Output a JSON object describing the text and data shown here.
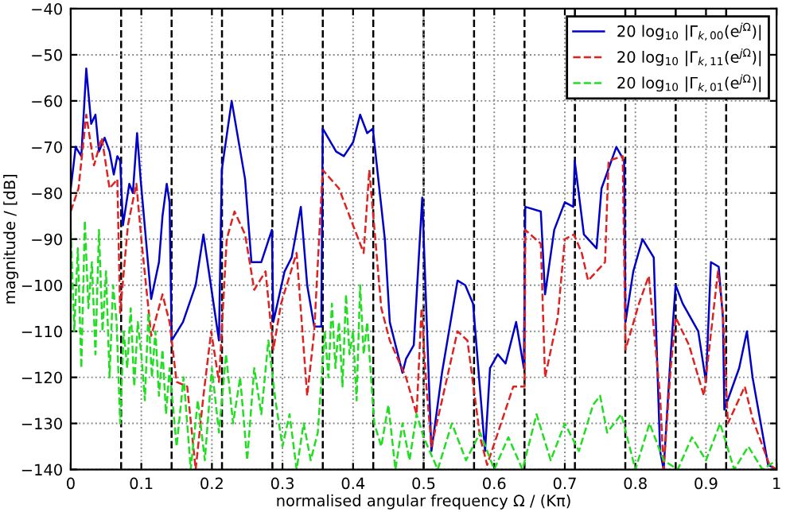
{
  "chart_data": {
    "type": "line",
    "xlabel": "normalised angular frequency Ω / (Kπ)",
    "ylabel": "magnitude / [dB]",
    "xlim": [
      0,
      1
    ],
    "ylim": [
      -140,
      -40
    ],
    "xticks": [
      0,
      0.1,
      0.2,
      0.3,
      0.4,
      0.5,
      0.6,
      0.7,
      0.8,
      0.9,
      1
    ],
    "yticks": [
      -140,
      -130,
      -120,
      -110,
      -100,
      -90,
      -80,
      -70,
      -60,
      -50,
      -40
    ],
    "grid": true,
    "legend": "top right",
    "series": [
      {
        "name": "20 log$_{10}$ |Γ$_{k,00}$(e$^{jΩ}$)|",
        "color": "#0000c8",
        "line_style": "solid",
        "x": [
          0,
          0.007,
          0.015,
          0.022,
          0.029,
          0.035,
          0.04,
          0.048,
          0.055,
          0.061,
          0.066,
          0.07,
          0.074,
          0.083,
          0.088,
          0.094,
          0.099,
          0.114,
          0.125,
          0.13,
          0.136,
          0.14,
          0.143,
          0.159,
          0.177,
          0.188,
          0.21,
          0.214,
          0.228,
          0.247,
          0.256,
          0.27,
          0.285,
          0.287,
          0.303,
          0.313,
          0.326,
          0.335,
          0.345,
          0.355,
          0.357,
          0.376,
          0.387,
          0.4,
          0.41,
          0.42,
          0.428,
          0.445,
          0.452,
          0.47,
          0.475,
          0.486,
          0.498,
          0.511,
          0.526,
          0.548,
          0.559,
          0.57,
          0.587,
          0.594,
          0.605,
          0.616,
          0.631,
          0.642,
          0.644,
          0.666,
          0.672,
          0.685,
          0.7,
          0.712,
          0.714,
          0.727,
          0.745,
          0.752,
          0.773,
          0.784,
          0.786,
          0.797,
          0.81,
          0.826,
          0.835,
          0.84,
          0.85,
          0.857,
          0.867,
          0.889,
          0.9,
          0.907,
          0.918,
          0.924,
          0.926,
          0.947,
          0.958,
          0.966,
          0.988,
          1
        ],
        "values": [
          -79,
          -70,
          -72,
          -53,
          -65,
          -63,
          -71,
          -68,
          -71,
          -76,
          -72,
          -73,
          -87,
          -78,
          -80,
          -67,
          -77,
          -103,
          -95,
          -85,
          -78,
          -82,
          -112,
          -108,
          -100,
          -89,
          -112,
          -75,
          -60,
          -77,
          -95,
          -95,
          -88,
          -108,
          -97,
          -94,
          -83,
          -100,
          -109,
          -109,
          -66,
          -71,
          -72,
          -69,
          -63,
          -67,
          -66,
          -90,
          -108,
          -119,
          -116,
          -113,
          -81,
          -136,
          -119,
          -99,
          -100,
          -104,
          -136,
          -118,
          -115,
          -117,
          -108,
          -118,
          -83,
          -84,
          -102,
          -88,
          -82,
          -83,
          -73,
          -89,
          -92,
          -79,
          -70,
          -73,
          -108,
          -97,
          -90,
          -94,
          -136,
          -140,
          -115,
          -100,
          -104,
          -110,
          -121,
          -95,
          -96,
          -107,
          -127,
          -118,
          -110,
          -120,
          -139,
          -140
        ]
      },
      {
        "name": "20 log$_{10}$ |Γ$_{k,11}$(e$^{jΩ}$)|",
        "color": "#dd2222",
        "line_style": "dashed",
        "x": [
          0,
          0.011,
          0.022,
          0.033,
          0.044,
          0.055,
          0.066,
          0.07,
          0.081,
          0.093,
          0.1,
          0.114,
          0.13,
          0.14,
          0.15,
          0.165,
          0.177,
          0.188,
          0.199,
          0.21,
          0.221,
          0.232,
          0.247,
          0.26,
          0.276,
          0.287,
          0.298,
          0.32,
          0.335,
          0.345,
          0.357,
          0.38,
          0.4,
          0.415,
          0.423,
          0.44,
          0.452,
          0.475,
          0.49,
          0.497,
          0.504,
          0.511,
          0.526,
          0.548,
          0.562,
          0.58,
          0.59,
          0.627,
          0.643,
          0.644,
          0.666,
          0.672,
          0.69,
          0.7,
          0.713,
          0.724,
          0.733,
          0.757,
          0.762,
          0.782,
          0.786,
          0.805,
          0.819,
          0.835,
          0.84,
          0.85,
          0.857,
          0.876,
          0.897,
          0.917,
          0.924,
          0.931,
          0.955,
          0.966,
          0.99,
          1
        ],
        "values": [
          -84,
          -79,
          -63,
          -74,
          -68,
          -79,
          -77,
          -106,
          -87,
          -78,
          -90,
          -111,
          -102,
          -108,
          -121,
          -122,
          -140,
          -124,
          -110,
          -121,
          -90,
          -84,
          -89,
          -101,
          -97,
          -114,
          -104,
          -93,
          -124,
          -110,
          -75,
          -79,
          -87,
          -93,
          -75,
          -105,
          -112,
          -120,
          -128,
          -105,
          -122,
          -135,
          -125,
          -110,
          -112,
          -133,
          -139,
          -122,
          -122,
          -88,
          -91,
          -120,
          -107,
          -90,
          -89,
          -93,
          -99,
          -95,
          -73,
          -72,
          -114,
          -104,
          -98,
          -124,
          -140,
          -118,
          -107,
          -113,
          -124,
          -97,
          -106,
          -130,
          -122,
          -129,
          -139,
          -140
        ]
      },
      {
        "name": "20 log$_{10}$ |Γ$_{k,01}$(e$^{jΩ}$)|",
        "color": "#22dd22",
        "line_style": "dashed",
        "x": [
          0,
          0.005,
          0.01,
          0.015,
          0.02,
          0.025,
          0.03,
          0.035,
          0.04,
          0.045,
          0.05,
          0.055,
          0.06,
          0.065,
          0.07,
          0.075,
          0.08,
          0.085,
          0.09,
          0.095,
          0.1,
          0.105,
          0.11,
          0.115,
          0.12,
          0.125,
          0.13,
          0.135,
          0.14,
          0.15,
          0.16,
          0.17,
          0.18,
          0.19,
          0.2,
          0.21,
          0.22,
          0.23,
          0.24,
          0.25,
          0.26,
          0.27,
          0.28,
          0.29,
          0.3,
          0.31,
          0.32,
          0.33,
          0.34,
          0.35,
          0.36,
          0.365,
          0.37,
          0.375,
          0.38,
          0.385,
          0.39,
          0.395,
          0.4,
          0.405,
          0.41,
          0.415,
          0.42,
          0.43,
          0.44,
          0.45,
          0.46,
          0.47,
          0.48,
          0.49,
          0.5,
          0.52,
          0.54,
          0.56,
          0.58,
          0.6,
          0.62,
          0.64,
          0.66,
          0.68,
          0.7,
          0.72,
          0.74,
          0.75,
          0.76,
          0.78,
          0.8,
          0.82,
          0.84,
          0.86,
          0.88,
          0.9,
          0.92,
          0.94,
          0.96,
          0.98,
          1
        ],
        "values": [
          -88,
          -110,
          -92,
          -118,
          -86,
          -105,
          -95,
          -115,
          -88,
          -110,
          -97,
          -120,
          -100,
          -108,
          -130,
          -110,
          -118,
          -105,
          -122,
          -108,
          -115,
          -125,
          -106,
          -120,
          -110,
          -124,
          -114,
          -128,
          -118,
          -135,
          -120,
          -140,
          -125,
          -138,
          -118,
          -132,
          -115,
          -130,
          -120,
          -138,
          -118,
          -128,
          -112,
          -125,
          -135,
          -128,
          -140,
          -130,
          -138,
          -132,
          -110,
          -120,
          -104,
          -118,
          -108,
          -122,
          -102,
          -115,
          -110,
          -125,
          -100,
          -115,
          -108,
          -130,
          -135,
          -126,
          -140,
          -130,
          -138,
          -128,
          -133,
          -140,
          -130,
          -138,
          -132,
          -140,
          -133,
          -140,
          -128,
          -138,
          -130,
          -136,
          -126,
          -124,
          -132,
          -128,
          -140,
          -130,
          -138,
          -140,
          -133,
          -138,
          -130,
          -140,
          -135,
          -140,
          -138
        ]
      }
    ],
    "ref_lines": [
      {
        "axis": "x",
        "value": 0.0714,
        "color": "#000000",
        "line_style": "dashed"
      },
      {
        "axis": "x",
        "value": 0.1429,
        "color": "#000000",
        "line_style": "dashed"
      },
      {
        "axis": "x",
        "value": 0.2143,
        "color": "#000000",
        "line_style": "dashed"
      },
      {
        "axis": "x",
        "value": 0.2857,
        "color": "#000000",
        "line_style": "dashed"
      },
      {
        "axis": "x",
        "value": 0.3571,
        "color": "#000000",
        "line_style": "dashed"
      },
      {
        "axis": "x",
        "value": 0.4286,
        "color": "#000000",
        "line_style": "dashed"
      },
      {
        "axis": "x",
        "value": 0.5,
        "color": "#000000",
        "line_style": "dashed"
      },
      {
        "axis": "x",
        "value": 0.5714,
        "color": "#000000",
        "line_style": "dashed"
      },
      {
        "axis": "x",
        "value": 0.6429,
        "color": "#000000",
        "line_style": "dashed"
      },
      {
        "axis": "x",
        "value": 0.7143,
        "color": "#000000",
        "line_style": "dashed"
      },
      {
        "axis": "x",
        "value": 0.7857,
        "color": "#000000",
        "line_style": "dashed"
      },
      {
        "axis": "x",
        "value": 0.8571,
        "color": "#000000",
        "line_style": "dashed"
      },
      {
        "axis": "x",
        "value": 0.9286,
        "color": "#000000",
        "line_style": "dashed"
      }
    ]
  }
}
